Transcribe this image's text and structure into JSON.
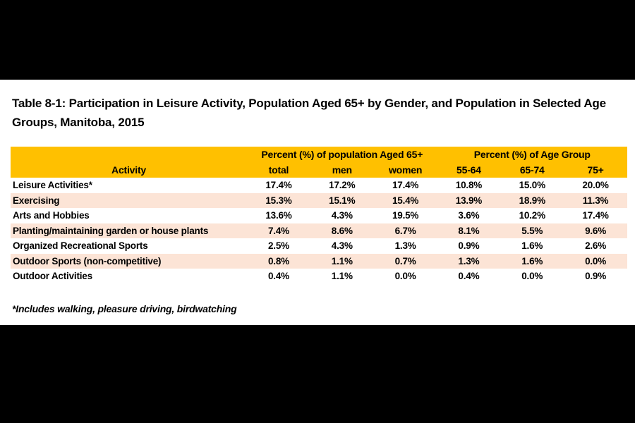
{
  "window": {
    "letterbox_color": "#000000",
    "page_color": "#ffffff"
  },
  "title": {
    "line1": "Table 8-1: Participation in Leisure Activity, Population Aged 65+ by Gender, and Population in Selected Age",
    "line2": "Groups, Manitoba, 2015"
  },
  "table": {
    "style": {
      "header_bg": "#FFC000",
      "alt_row_bg": "#FCE4D6",
      "row_bg": "#FFFFFF",
      "text_color": "#000000"
    },
    "group_headers": {
      "aged65": "Percent (%) of population Aged 65+",
      "age_group": "Percent (%) of Age Group"
    },
    "columns": [
      "Activity",
      "total",
      "men",
      "women",
      "55-64",
      "65-74",
      "75+"
    ],
    "rows": [
      {
        "activity": "Leisure Activities*",
        "values": [
          "17.4%",
          "17.2%",
          "17.4%",
          "10.8%",
          "15.0%",
          "20.0%"
        ]
      },
      {
        "activity": "Exercising",
        "values": [
          "15.3%",
          "15.1%",
          "15.4%",
          "13.9%",
          "18.9%",
          "11.3%"
        ]
      },
      {
        "activity": "Arts and Hobbies",
        "values": [
          "13.6%",
          "4.3%",
          "19.5%",
          "3.6%",
          "10.2%",
          "17.4%"
        ]
      },
      {
        "activity": "Planting/maintaining garden or house plants",
        "values": [
          "7.4%",
          "8.6%",
          "6.7%",
          "8.1%",
          "5.5%",
          "9.6%"
        ]
      },
      {
        "activity": "Organized Recreational Sports",
        "values": [
          "2.5%",
          "4.3%",
          "1.3%",
          "0.9%",
          "1.6%",
          "2.6%"
        ]
      },
      {
        "activity": "Outdoor Sports (non-competitive)",
        "values": [
          "0.8%",
          "1.1%",
          "0.7%",
          "1.3%",
          "1.6%",
          "0.0%"
        ]
      },
      {
        "activity": "Outdoor Activities",
        "values": [
          "0.4%",
          "1.1%",
          "0.0%",
          "0.4%",
          "0.0%",
          "0.9%"
        ]
      }
    ]
  },
  "footnote": {
    "text": "*Includes walking, pleasure driving, birdwatching"
  }
}
